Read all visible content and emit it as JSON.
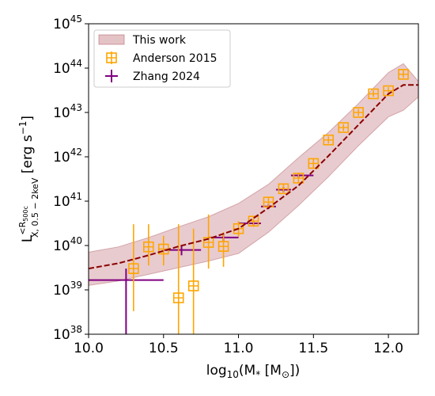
{
  "chart_data": {
    "type": "scatter",
    "title": "",
    "xlabel": {
      "main": "log",
      "sub": "10",
      "rest": "(M",
      "star": "*",
      "mid": " [M",
      "sun": "⊙",
      "end": "])"
    },
    "ylabel": {
      "L": "L",
      "sup": "<R",
      "supsub": "500c",
      "sub": "X, 0.5 − 2keV",
      "units": " [erg s",
      "unitsexp": "−1",
      "close": "]"
    },
    "xlim": [
      10.0,
      12.2
    ],
    "ylim_log10": [
      38,
      45
    ],
    "y_scale": "log",
    "x_ticks": [
      10.0,
      10.5,
      11.0,
      11.5,
      12.0
    ],
    "x_tick_labels": [
      "10.0",
      "10.5",
      "11.0",
      "11.5",
      "12.0"
    ],
    "y_ticks_log10": [
      38,
      39,
      40,
      41,
      42,
      43,
      44,
      45
    ],
    "y_tick_labels": [
      {
        "base": "10",
        "exp": "38"
      },
      {
        "base": "10",
        "exp": "39"
      },
      {
        "base": "10",
        "exp": "40"
      },
      {
        "base": "10",
        "exp": "41"
      },
      {
        "base": "10",
        "exp": "42"
      },
      {
        "base": "10",
        "exp": "43"
      },
      {
        "base": "10",
        "exp": "44"
      },
      {
        "base": "10",
        "exp": "45"
      }
    ],
    "legend_position": "top-left",
    "legend": [
      "This work",
      "Anderson 2015",
      "Zhang 2024"
    ],
    "colors": {
      "this_work_band": "#d8a9ae",
      "this_work_line": "#8b0000",
      "anderson": "#ffa500",
      "zhang": "#800080"
    },
    "series": [
      {
        "name": "This work",
        "kind": "median_with_band",
        "x": [
          10.0,
          10.2,
          10.4,
          10.6,
          10.8,
          11.0,
          11.2,
          11.4,
          11.6,
          11.8,
          12.0,
          12.1,
          12.2
        ],
        "y_log10": [
          39.48,
          39.6,
          39.78,
          39.98,
          40.15,
          40.38,
          40.85,
          41.35,
          42.02,
          42.72,
          43.42,
          43.62,
          43.62
        ],
        "band_low_log10": [
          39.1,
          39.2,
          39.35,
          39.5,
          39.65,
          39.82,
          40.3,
          40.9,
          41.55,
          42.25,
          42.9,
          43.05,
          43.35
        ],
        "band_high_log10": [
          39.85,
          39.97,
          40.18,
          40.42,
          40.65,
          40.95,
          41.38,
          41.98,
          42.55,
          43.2,
          43.9,
          44.1,
          43.7
        ]
      },
      {
        "name": "Anderson 2015",
        "kind": "errorbar_points",
        "marker": "open-square-plus",
        "x": [
          10.3,
          10.4,
          10.5,
          10.6,
          10.7,
          10.8,
          10.9,
          11.0,
          11.1,
          11.2,
          11.3,
          11.4,
          11.5,
          11.6,
          11.7,
          11.8,
          11.9,
          12.0,
          12.1
        ],
        "y_log10": [
          39.48,
          39.97,
          39.92,
          38.82,
          39.09,
          40.07,
          39.98,
          40.38,
          40.55,
          40.98,
          41.28,
          41.52,
          41.85,
          42.38,
          42.66,
          43.0,
          43.42,
          43.49,
          43.86
        ],
        "yerr_low_log10": [
          38.52,
          39.55,
          39.55,
          38.0,
          38.0,
          39.48,
          39.52,
          40.2,
          40.42,
          40.88,
          41.2,
          41.42,
          41.75,
          42.3,
          42.58,
          42.92,
          43.35,
          43.42,
          43.78
        ],
        "yerr_high_log10": [
          40.48,
          40.48,
          40.22,
          40.48,
          40.38,
          40.7,
          40.3,
          40.55,
          40.65,
          41.08,
          41.38,
          41.62,
          41.95,
          42.46,
          42.74,
          43.08,
          43.5,
          43.57,
          43.95
        ]
      },
      {
        "name": "Zhang 2024",
        "kind": "errorbar_points",
        "marker": "plus",
        "x": [
          10.25,
          10.62,
          10.9,
          11.1,
          11.2,
          11.3,
          11.4
        ],
        "xerr_low": [
          9.98,
          10.5,
          10.8,
          11.0,
          11.15,
          11.25,
          11.35
        ],
        "xerr_high": [
          10.5,
          10.75,
          11.0,
          11.15,
          11.25,
          11.35,
          11.5
        ],
        "y_log10": [
          39.22,
          39.9,
          40.18,
          40.5,
          40.88,
          41.26,
          41.58
        ],
        "yerr_low_log10": [
          38.0,
          39.78,
          40.1,
          40.44,
          40.82,
          41.2,
          41.52
        ],
        "yerr_high_log10": [
          39.48,
          40.0,
          40.26,
          40.56,
          40.94,
          41.32,
          41.64
        ]
      }
    ]
  }
}
